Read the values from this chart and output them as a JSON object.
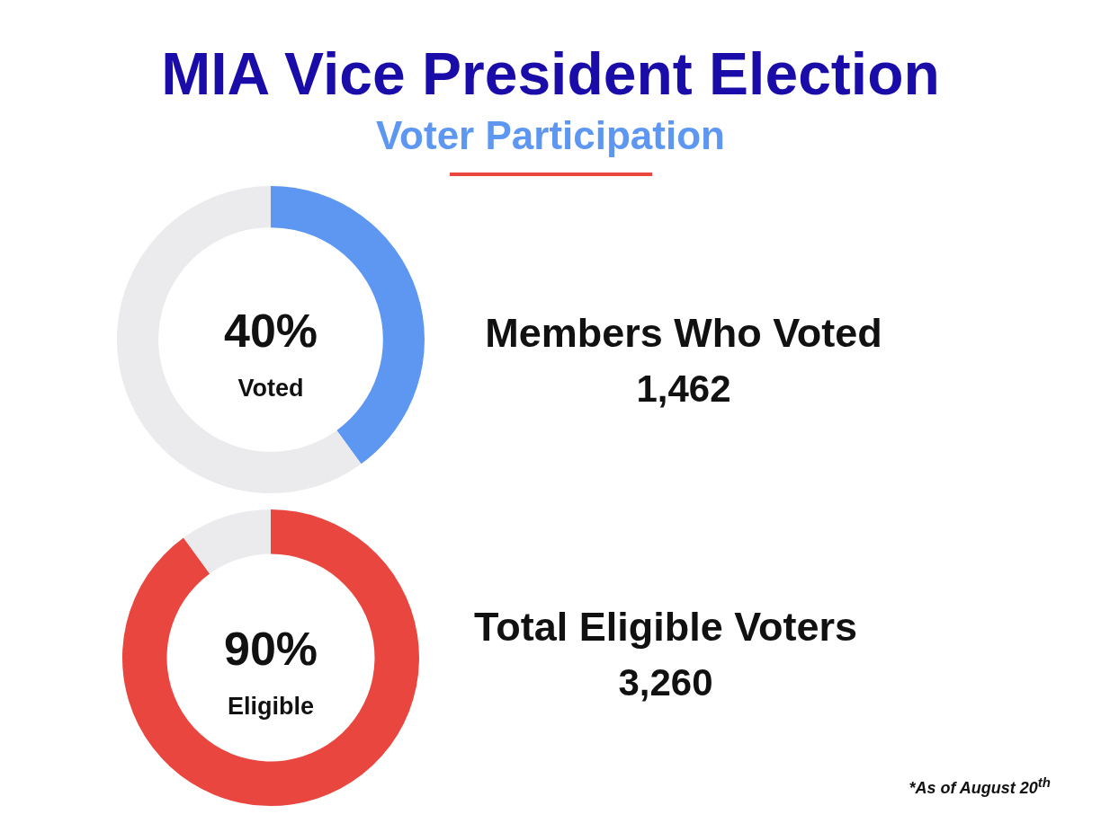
{
  "chart_data": [
    {
      "type": "donut",
      "title": "MIA Vice President Election",
      "subtitle": "Voter Participation",
      "categories": [
        "Voted",
        null
      ],
      "values": [
        40,
        60
      ],
      "colors": [
        "#5d97f2",
        "#ebebee"
      ],
      "value_labels": [
        "40%",
        null
      ],
      "annotations": [
        "Members Who Voted",
        "1,462"
      ]
    },
    {
      "type": "donut",
      "categories": [
        "Eligible",
        null
      ],
      "values": [
        90,
        10
      ],
      "colors": [
        "#e9463f",
        "#ebebee"
      ],
      "value_labels": [
        "90%",
        null
      ],
      "annotations": [
        "Total Eligible Voters",
        "3,260",
        "*As of August 20$^{th}$"
      ]
    }
  ]
}
